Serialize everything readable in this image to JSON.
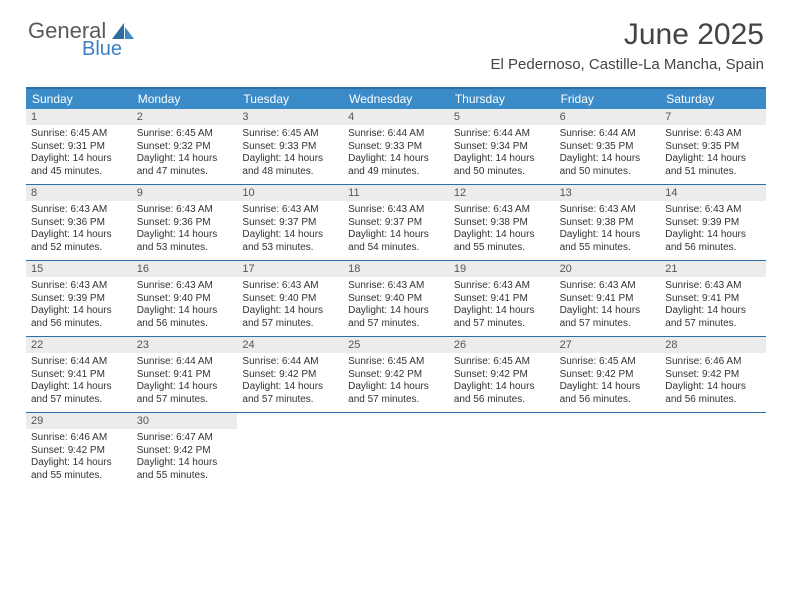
{
  "brand": {
    "part1": "General",
    "part2": "Blue"
  },
  "title": "June 2025",
  "location": "El Pedernoso, Castille-La Mancha, Spain",
  "colors": {
    "header_bg": "#3b8bc9",
    "border": "#2e6da4",
    "daynum_bg": "#ececec",
    "text": "#333333",
    "brand_gray": "#5a5a5a",
    "brand_blue": "#3b7fc4",
    "white": "#ffffff"
  },
  "weekdays": [
    "Sunday",
    "Monday",
    "Tuesday",
    "Wednesday",
    "Thursday",
    "Friday",
    "Saturday"
  ],
  "weeks": [
    [
      {
        "n": "1",
        "sr": "6:45 AM",
        "ss": "9:31 PM",
        "dl": "14 hours and 45 minutes."
      },
      {
        "n": "2",
        "sr": "6:45 AM",
        "ss": "9:32 PM",
        "dl": "14 hours and 47 minutes."
      },
      {
        "n": "3",
        "sr": "6:45 AM",
        "ss": "9:33 PM",
        "dl": "14 hours and 48 minutes."
      },
      {
        "n": "4",
        "sr": "6:44 AM",
        "ss": "9:33 PM",
        "dl": "14 hours and 49 minutes."
      },
      {
        "n": "5",
        "sr": "6:44 AM",
        "ss": "9:34 PM",
        "dl": "14 hours and 50 minutes."
      },
      {
        "n": "6",
        "sr": "6:44 AM",
        "ss": "9:35 PM",
        "dl": "14 hours and 50 minutes."
      },
      {
        "n": "7",
        "sr": "6:43 AM",
        "ss": "9:35 PM",
        "dl": "14 hours and 51 minutes."
      }
    ],
    [
      {
        "n": "8",
        "sr": "6:43 AM",
        "ss": "9:36 PM",
        "dl": "14 hours and 52 minutes."
      },
      {
        "n": "9",
        "sr": "6:43 AM",
        "ss": "9:36 PM",
        "dl": "14 hours and 53 minutes."
      },
      {
        "n": "10",
        "sr": "6:43 AM",
        "ss": "9:37 PM",
        "dl": "14 hours and 53 minutes."
      },
      {
        "n": "11",
        "sr": "6:43 AM",
        "ss": "9:37 PM",
        "dl": "14 hours and 54 minutes."
      },
      {
        "n": "12",
        "sr": "6:43 AM",
        "ss": "9:38 PM",
        "dl": "14 hours and 55 minutes."
      },
      {
        "n": "13",
        "sr": "6:43 AM",
        "ss": "9:38 PM",
        "dl": "14 hours and 55 minutes."
      },
      {
        "n": "14",
        "sr": "6:43 AM",
        "ss": "9:39 PM",
        "dl": "14 hours and 56 minutes."
      }
    ],
    [
      {
        "n": "15",
        "sr": "6:43 AM",
        "ss": "9:39 PM",
        "dl": "14 hours and 56 minutes."
      },
      {
        "n": "16",
        "sr": "6:43 AM",
        "ss": "9:40 PM",
        "dl": "14 hours and 56 minutes."
      },
      {
        "n": "17",
        "sr": "6:43 AM",
        "ss": "9:40 PM",
        "dl": "14 hours and 57 minutes."
      },
      {
        "n": "18",
        "sr": "6:43 AM",
        "ss": "9:40 PM",
        "dl": "14 hours and 57 minutes."
      },
      {
        "n": "19",
        "sr": "6:43 AM",
        "ss": "9:41 PM",
        "dl": "14 hours and 57 minutes."
      },
      {
        "n": "20",
        "sr": "6:43 AM",
        "ss": "9:41 PM",
        "dl": "14 hours and 57 minutes."
      },
      {
        "n": "21",
        "sr": "6:43 AM",
        "ss": "9:41 PM",
        "dl": "14 hours and 57 minutes."
      }
    ],
    [
      {
        "n": "22",
        "sr": "6:44 AM",
        "ss": "9:41 PM",
        "dl": "14 hours and 57 minutes."
      },
      {
        "n": "23",
        "sr": "6:44 AM",
        "ss": "9:41 PM",
        "dl": "14 hours and 57 minutes."
      },
      {
        "n": "24",
        "sr": "6:44 AM",
        "ss": "9:42 PM",
        "dl": "14 hours and 57 minutes."
      },
      {
        "n": "25",
        "sr": "6:45 AM",
        "ss": "9:42 PM",
        "dl": "14 hours and 57 minutes."
      },
      {
        "n": "26",
        "sr": "6:45 AM",
        "ss": "9:42 PM",
        "dl": "14 hours and 56 minutes."
      },
      {
        "n": "27",
        "sr": "6:45 AM",
        "ss": "9:42 PM",
        "dl": "14 hours and 56 minutes."
      },
      {
        "n": "28",
        "sr": "6:46 AM",
        "ss": "9:42 PM",
        "dl": "14 hours and 56 minutes."
      }
    ],
    [
      {
        "n": "29",
        "sr": "6:46 AM",
        "ss": "9:42 PM",
        "dl": "14 hours and 55 minutes."
      },
      {
        "n": "30",
        "sr": "6:47 AM",
        "ss": "9:42 PM",
        "dl": "14 hours and 55 minutes."
      },
      null,
      null,
      null,
      null,
      null
    ]
  ],
  "labels": {
    "sunrise": "Sunrise:",
    "sunset": "Sunset:",
    "daylight": "Daylight:"
  }
}
